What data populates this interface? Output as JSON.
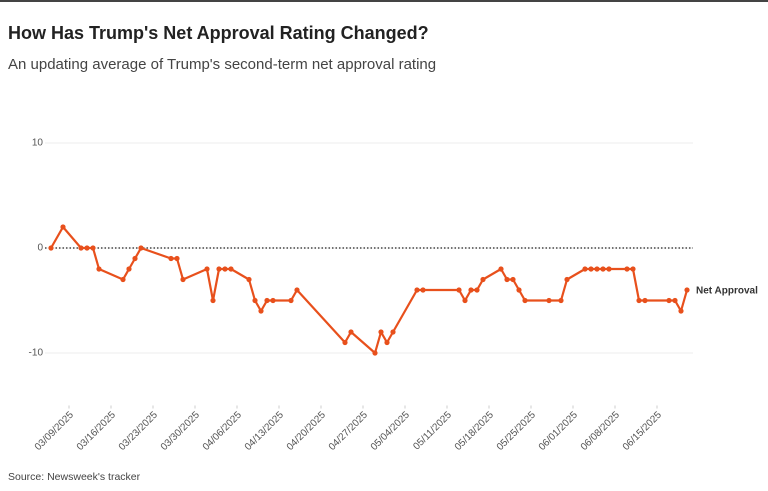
{
  "chart_data": {
    "type": "line",
    "title": "How Has Trump's Net Approval Rating Changed?",
    "subtitle": "An updating average of Trump's second-term net approval rating",
    "source": "Source: Newsweek's tracker",
    "x": [
      "2025-03-06",
      "2025-03-08",
      "2025-03-11",
      "2025-03-12",
      "2025-03-13",
      "2025-03-14",
      "2025-03-18",
      "2025-03-19",
      "2025-03-20",
      "2025-03-21",
      "2025-03-26",
      "2025-03-27",
      "2025-03-28",
      "2025-04-01",
      "2025-04-02",
      "2025-04-03",
      "2025-04-04",
      "2025-04-05",
      "2025-04-08",
      "2025-04-09",
      "2025-04-10",
      "2025-04-11",
      "2025-04-12",
      "2025-04-15",
      "2025-04-16",
      "2025-04-24",
      "2025-04-25",
      "2025-04-29",
      "2025-04-30",
      "2025-05-01",
      "2025-05-02",
      "2025-05-06",
      "2025-05-07",
      "2025-05-13",
      "2025-05-14",
      "2025-05-15",
      "2025-05-16",
      "2025-05-17",
      "2025-05-20",
      "2025-05-21",
      "2025-05-22",
      "2025-05-23",
      "2025-05-24",
      "2025-05-28",
      "2025-05-30",
      "2025-05-31",
      "2025-06-03",
      "2025-06-04",
      "2025-06-05",
      "2025-06-06",
      "2025-06-07",
      "2025-06-10",
      "2025-06-11",
      "2025-06-12",
      "2025-06-13",
      "2025-06-17",
      "2025-06-18",
      "2025-06-19",
      "2025-06-20"
    ],
    "series": [
      {
        "name": "Net Approval",
        "color": "#e8501c",
        "values": [
          0,
          2,
          0,
          0,
          0,
          -2,
          -3,
          -2,
          -1,
          0,
          -1,
          -1,
          -3,
          -2,
          -5,
          -2,
          -2,
          -2,
          -3,
          -5,
          -6,
          -5,
          -5,
          -5,
          -4,
          -9,
          -8,
          -10,
          -8,
          -9,
          -8,
          -4,
          -4,
          -4,
          -5,
          -4,
          -4,
          -3,
          -2,
          -3,
          -3,
          -4,
          -5,
          -5,
          -5,
          -3,
          -2,
          -2,
          -2,
          -2,
          -2,
          -2,
          -2,
          -5,
          -5,
          -5,
          -5,
          -6,
          -4
        ]
      }
    ],
    "xlim": [
      "2025-03-05",
      "2025-06-21"
    ],
    "xticks": [
      {
        "value": "2025-03-09",
        "label": "03/09/2025"
      },
      {
        "value": "2025-03-16",
        "label": "03/16/2025"
      },
      {
        "value": "2025-03-23",
        "label": "03/23/2025"
      },
      {
        "value": "2025-03-30",
        "label": "03/30/2025"
      },
      {
        "value": "2025-04-06",
        "label": "04/06/2025"
      },
      {
        "value": "2025-04-13",
        "label": "04/13/2025"
      },
      {
        "value": "2025-04-20",
        "label": "04/20/2025"
      },
      {
        "value": "2025-04-27",
        "label": "04/27/2025"
      },
      {
        "value": "2025-05-04",
        "label": "05/04/2025"
      },
      {
        "value": "2025-05-11",
        "label": "05/11/2025"
      },
      {
        "value": "2025-05-18",
        "label": "05/18/2025"
      },
      {
        "value": "2025-05-25",
        "label": "05/25/2025"
      },
      {
        "value": "2025-06-01",
        "label": "06/01/2025"
      },
      {
        "value": "2025-06-08",
        "label": "06/08/2025"
      },
      {
        "value": "2025-06-15",
        "label": "06/15/2025"
      }
    ],
    "ylim": [
      -15,
      15
    ],
    "yticks": [
      10,
      0,
      -10
    ],
    "zero_line": true,
    "grid": true
  }
}
